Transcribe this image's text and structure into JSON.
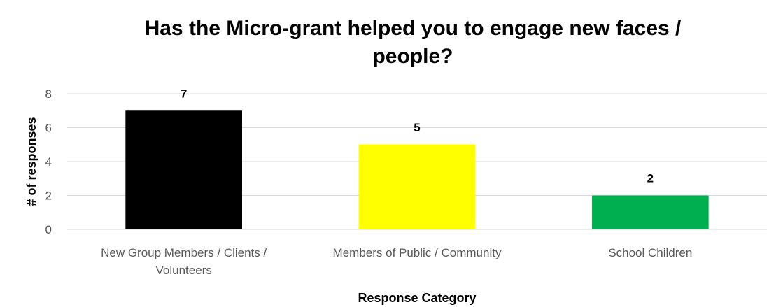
{
  "chart_data": {
    "type": "bar",
    "title_lines": [
      "Has the Micro-grant helped you to engage new faces /",
      "people?"
    ],
    "xlabel": "Response Category",
    "ylabel": "# of responses",
    "categories": [
      [
        "New Group Members / Clients /",
        "Volunteers"
      ],
      [
        "Members of Public / Community"
      ],
      [
        "School Children"
      ]
    ],
    "values": [
      7,
      5,
      2
    ],
    "colors": [
      "#000000",
      "#ffff00",
      "#00b050"
    ],
    "ylim": [
      0,
      8
    ],
    "yticks": [
      0,
      2,
      4,
      6,
      8
    ],
    "grid": true,
    "legend": "none",
    "data_labels": true
  }
}
